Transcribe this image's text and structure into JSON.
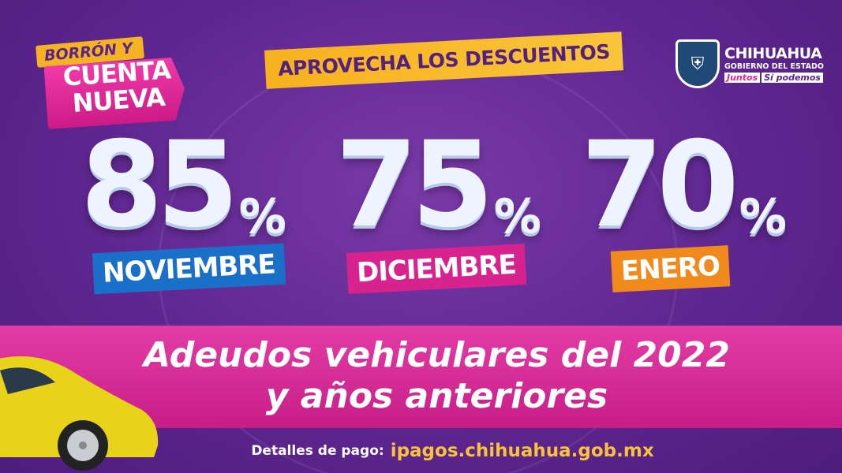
{
  "badge": {
    "top": "BORRÓN Y",
    "main": "CUENTA NUEVA"
  },
  "headline": "APROVECHA LOS DESCUENTOS",
  "logo": {
    "name": "CHIHUAHUA",
    "subtitle": "GOBIERNO DEL ESTADO",
    "slogan_a": "Juntos",
    "slogan_b": "Sí podemos"
  },
  "discounts": [
    {
      "value": "85",
      "sign": "%",
      "month": "NOVIEMBRE",
      "color": "#1a6fc9"
    },
    {
      "value": "75",
      "sign": "%",
      "month": "DICIEMBRE",
      "color": "#d8238f"
    },
    {
      "value": "70",
      "sign": "%",
      "month": "ENERO",
      "color": "#f08a1c"
    }
  ],
  "strip": {
    "line1": "Adeudos vehiculares del 2022",
    "line2": "y años anteriores"
  },
  "footer": {
    "label": "Detalles de pago:",
    "url": "ipagos.chihuahua.gob.mx"
  }
}
